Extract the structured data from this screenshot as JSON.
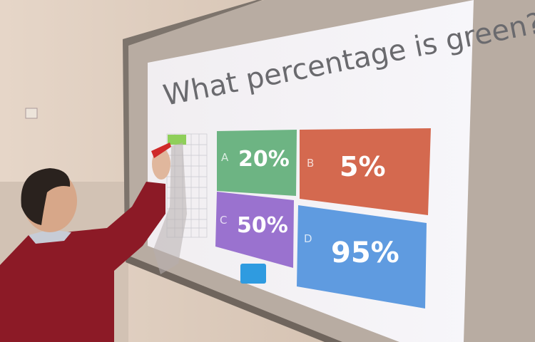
{
  "quiz": {
    "question": "What percentage is green?",
    "answers": [
      {
        "letter": "A",
        "value": "20%",
        "color": "#6db483"
      },
      {
        "letter": "B",
        "value": "5%",
        "color": "#d4694f"
      },
      {
        "letter": "C",
        "value": "50%",
        "color": "#9a72cf"
      },
      {
        "letter": "D",
        "value": "95%",
        "color": "#5f9be0"
      }
    ],
    "grid_highlight_color": "#8fcf5a"
  },
  "colors": {
    "wall": "#d8c6b6",
    "board_frame": "#8f857c",
    "projection": "#f4f3f6",
    "sweater": "#8c1a26"
  }
}
